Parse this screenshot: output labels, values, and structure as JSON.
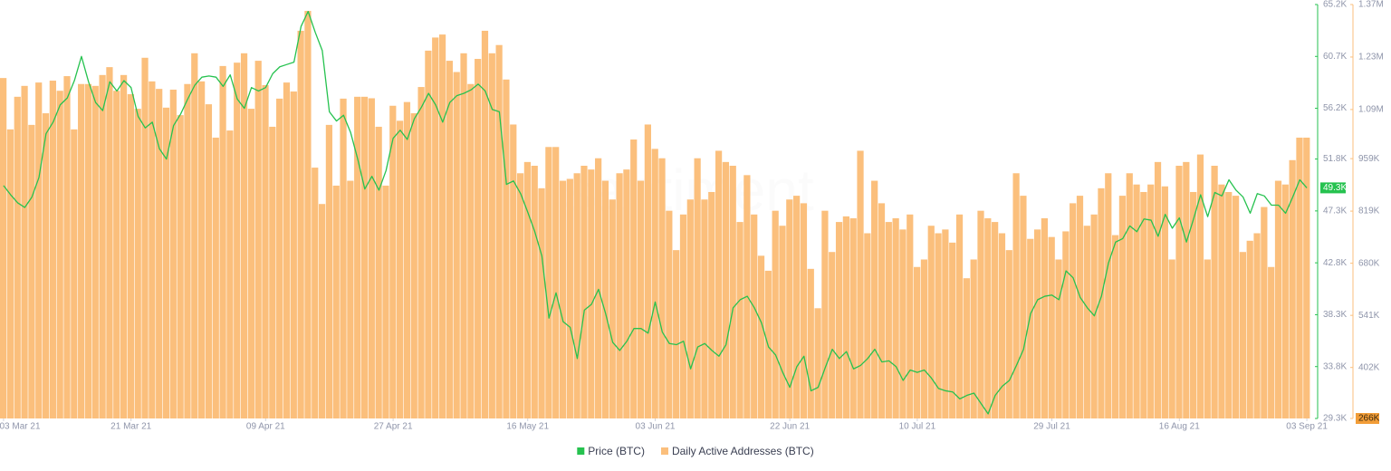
{
  "chart_data": {
    "type": "bar-line",
    "watermark": "santiment",
    "x": [
      "2021-03-03",
      "2021-03-04",
      "2021-03-05",
      "2021-03-06",
      "2021-03-07",
      "2021-03-08",
      "2021-03-09",
      "2021-03-10",
      "2021-03-11",
      "2021-03-12",
      "2021-03-13",
      "2021-03-14",
      "2021-03-15",
      "2021-03-16",
      "2021-03-17",
      "2021-03-18",
      "2021-03-19",
      "2021-03-20",
      "2021-03-21",
      "2021-03-22",
      "2021-03-23",
      "2021-03-24",
      "2021-03-25",
      "2021-03-26",
      "2021-03-27",
      "2021-03-28",
      "2021-03-29",
      "2021-03-30",
      "2021-03-31",
      "2021-04-01",
      "2021-04-02",
      "2021-04-03",
      "2021-04-04",
      "2021-04-05",
      "2021-04-06",
      "2021-04-07",
      "2021-04-08",
      "2021-04-09",
      "2021-04-10",
      "2021-04-11",
      "2021-04-12",
      "2021-04-13",
      "2021-04-14",
      "2021-04-15",
      "2021-04-16",
      "2021-04-17",
      "2021-04-18",
      "2021-04-19",
      "2021-04-20",
      "2021-04-21",
      "2021-04-22",
      "2021-04-23",
      "2021-04-24",
      "2021-04-25",
      "2021-04-26",
      "2021-04-27",
      "2021-04-28",
      "2021-04-29",
      "2021-04-30",
      "2021-05-01",
      "2021-05-02",
      "2021-05-03",
      "2021-05-04",
      "2021-05-05",
      "2021-05-06",
      "2021-05-07",
      "2021-05-08",
      "2021-05-09",
      "2021-05-10",
      "2021-05-11",
      "2021-05-12",
      "2021-05-13",
      "2021-05-14",
      "2021-05-15",
      "2021-05-16",
      "2021-05-17",
      "2021-05-18",
      "2021-05-19",
      "2021-05-20",
      "2021-05-21",
      "2021-05-22",
      "2021-05-23",
      "2021-05-24",
      "2021-05-25",
      "2021-05-26",
      "2021-05-27",
      "2021-05-28",
      "2021-05-29",
      "2021-05-30",
      "2021-05-31",
      "2021-06-01",
      "2021-06-02",
      "2021-06-03",
      "2021-06-04",
      "2021-06-05",
      "2021-06-06",
      "2021-06-07",
      "2021-06-08",
      "2021-06-09",
      "2021-06-10",
      "2021-06-11",
      "2021-06-12",
      "2021-06-13",
      "2021-06-14",
      "2021-06-15",
      "2021-06-16",
      "2021-06-17",
      "2021-06-18",
      "2021-06-19",
      "2021-06-20",
      "2021-06-21",
      "2021-06-22",
      "2021-06-23",
      "2021-06-24",
      "2021-06-25",
      "2021-06-26",
      "2021-06-27",
      "2021-06-28",
      "2021-06-29",
      "2021-06-30",
      "2021-07-01",
      "2021-07-02",
      "2021-07-03",
      "2021-07-04",
      "2021-07-05",
      "2021-07-06",
      "2021-07-07",
      "2021-07-08",
      "2021-07-09",
      "2021-07-10",
      "2021-07-11",
      "2021-07-12",
      "2021-07-13",
      "2021-07-14",
      "2021-07-15",
      "2021-07-16",
      "2021-07-17",
      "2021-07-18",
      "2021-07-19",
      "2021-07-20",
      "2021-07-21",
      "2021-07-22",
      "2021-07-23",
      "2021-07-24",
      "2021-07-25",
      "2021-07-26",
      "2021-07-27",
      "2021-07-28",
      "2021-07-29",
      "2021-07-30",
      "2021-07-31",
      "2021-08-01",
      "2021-08-02",
      "2021-08-03",
      "2021-08-04",
      "2021-08-05",
      "2021-08-06",
      "2021-08-07",
      "2021-08-08",
      "2021-08-09",
      "2021-08-10",
      "2021-08-11",
      "2021-08-12",
      "2021-08-13",
      "2021-08-14",
      "2021-08-15",
      "2021-08-16",
      "2021-08-17",
      "2021-08-18",
      "2021-08-19",
      "2021-08-20",
      "2021-08-21",
      "2021-08-22",
      "2021-08-23",
      "2021-08-24",
      "2021-08-25",
      "2021-08-26",
      "2021-08-27",
      "2021-08-28",
      "2021-08-29",
      "2021-08-30",
      "2021-08-31",
      "2021-09-01",
      "2021-09-02",
      "2021-09-03"
    ],
    "xticks": [
      {
        "value": "2021-03-03",
        "label": "03 Mar 21"
      },
      {
        "value": "2021-03-21",
        "label": "21 Mar 21"
      },
      {
        "value": "2021-04-09",
        "label": "09 Apr 21"
      },
      {
        "value": "2021-04-27",
        "label": "27 Apr 21"
      },
      {
        "value": "2021-05-16",
        "label": "16 May 21"
      },
      {
        "value": "2021-06-03",
        "label": "03 Jun 21"
      },
      {
        "value": "2021-06-22",
        "label": "22 Jun 21"
      },
      {
        "value": "2021-07-10",
        "label": "10 Jul 21"
      },
      {
        "value": "2021-07-29",
        "label": "29 Jul 21"
      },
      {
        "value": "2021-08-16",
        "label": "16 Aug 21"
      },
      {
        "value": "2021-09-03",
        "label": "03 Sep 21"
      }
    ],
    "ylim": [
      29.3,
      65.2
    ],
    "yticks": [
      {
        "value": 65.2,
        "label": "65.2K"
      },
      {
        "value": 60.7,
        "label": "60.7K"
      },
      {
        "value": 56.2,
        "label": "56.2K"
      },
      {
        "value": 51.8,
        "label": "51.8K"
      },
      {
        "value": 47.3,
        "label": "47.3K"
      },
      {
        "value": 42.8,
        "label": "42.8K"
      },
      {
        "value": 38.3,
        "label": "38.3K"
      },
      {
        "value": 33.8,
        "label": "33.8K"
      },
      {
        "value": 29.3,
        "label": "29.3K"
      }
    ],
    "y2lim": [
      266,
      1370
    ],
    "y2ticks": [
      {
        "value": 1370,
        "label": "1.37M"
      },
      {
        "value": 1230,
        "label": "1.23M"
      },
      {
        "value": 1090,
        "label": "1.09M"
      },
      {
        "value": 959,
        "label": "959K"
      },
      {
        "value": 819,
        "label": "819K"
      },
      {
        "value": 680,
        "label": "680K"
      },
      {
        "value": 541,
        "label": "541K"
      },
      {
        "value": 402,
        "label": "402K"
      },
      {
        "value": 266,
        "label": "266K"
      }
    ],
    "last_value_label": "49.3K",
    "series": [
      {
        "name": "Price (BTC)",
        "type": "line",
        "axis": "y",
        "color": "#26c24f",
        "values": [
          49.5,
          48.7,
          48.0,
          47.6,
          48.5,
          50.2,
          54.0,
          55.0,
          56.5,
          57.1,
          58.6,
          60.7,
          58.5,
          56.7,
          56.0,
          58.5,
          57.7,
          58.6,
          58.0,
          55.5,
          54.5,
          55.0,
          52.7,
          51.8,
          54.7,
          55.7,
          57.0,
          58.2,
          58.9,
          59.0,
          58.9,
          58.1,
          59.1,
          57.0,
          56.2,
          58.0,
          57.7,
          58.0,
          59.2,
          59.8,
          60.0,
          60.2,
          63.3,
          64.6,
          62.8,
          61.2,
          55.9,
          55.1,
          55.6,
          54.1,
          51.8,
          49.2,
          50.3,
          49.1,
          50.8,
          53.6,
          54.3,
          53.5,
          55.3,
          56.3,
          57.5,
          56.5,
          55.0,
          56.7,
          57.3,
          57.5,
          57.8,
          58.3,
          57.7,
          56.1,
          55.9,
          49.6,
          49.9,
          48.8,
          47.2,
          45.5,
          43.4,
          38.0,
          40.2,
          37.7,
          37.2,
          34.5,
          38.7,
          39.2,
          40.5,
          38.4,
          35.9,
          35.2,
          36.0,
          37.1,
          37.1,
          36.7,
          39.4,
          36.8,
          35.8,
          35.7,
          36.0,
          33.6,
          35.5,
          35.8,
          35.2,
          34.7,
          35.7,
          38.9,
          39.6,
          39.9,
          38.9,
          37.6,
          35.5,
          34.8,
          33.3,
          32.0,
          33.8,
          34.7,
          31.7,
          32.0,
          33.7,
          35.3,
          34.5,
          35.1,
          33.6,
          33.9,
          34.5,
          35.3,
          34.2,
          34.3,
          33.8,
          32.6,
          33.5,
          33.3,
          33.5,
          32.8,
          31.9,
          31.7,
          31.6,
          31.0,
          31.3,
          31.5,
          30.6,
          29.7,
          31.3,
          32.1,
          32.6,
          33.9,
          35.3,
          38.4,
          39.6,
          39.9,
          40.0,
          39.6,
          42.1,
          41.5,
          39.8,
          38.9,
          38.2,
          39.9,
          42.8,
          44.6,
          44.9,
          46.0,
          45.5,
          46.6,
          46.5,
          45.1,
          47.0,
          45.8,
          46.7,
          44.6,
          46.6,
          48.7,
          46.8,
          48.9,
          48.6,
          50.0,
          49.1,
          48.5,
          47.1,
          48.8,
          48.6,
          47.8,
          47.8,
          47.1,
          48.5,
          50.0,
          49.3
        ]
      },
      {
        "name": "Daily Active Addresses (BTC)",
        "type": "bar",
        "axis": "y2",
        "color": "#fbbf7c",
        "values": [
          1174,
          1037,
          1124,
          1153,
          1049,
          1162,
          1080,
          1167,
          1140,
          1179,
          1037,
          1158,
          1158,
          1153,
          1182,
          1203,
          1140,
          1182,
          1131,
          1092,
          1228,
          1165,
          1145,
          1095,
          1143,
          1075,
          1158,
          1240,
          1165,
          1104,
          1015,
          1206,
          1034,
          1215,
          1240,
          1092,
          1220,
          1155,
          1044,
          1119,
          1162,
          1138,
          1300,
          1353,
          935,
          838,
          1049,
          887,
          1119,
          900,
          1124,
          1124,
          1120,
          1044,
          887,
          1100,
          1060,
          1110,
          1080,
          1150,
          1247,
          1282,
          1290,
          1220,
          1190,
          1240,
          1158,
          1225,
          1300,
          1240,
          1262,
          1170,
          1050,
          920,
          950,
          940,
          880,
          990,
          990,
          900,
          905,
          920,
          940,
          930,
          960,
          900,
          850,
          920,
          930,
          1010,
          900,
          1050,
          985,
          960,
          820,
          715,
          810,
          850,
          960,
          850,
          870,
          980,
          950,
          940,
          790,
          915,
          810,
          700,
          660,
          820,
          780,
          850,
          860,
          840,
          665,
          560,
          820,
          710,
          790,
          805,
          800,
          980,
          760,
          900,
          840,
          790,
          800,
          770,
          810,
          670,
          690,
          780,
          760,
          770,
          735,
          810,
          640,
          690,
          820,
          800,
          790,
          760,
          715,
          920,
          860,
          745,
          770,
          800,
          750,
          690,
          765,
          840,
          860,
          780,
          810,
          880,
          920,
          755,
          860,
          920,
          890,
          870,
          890,
          950,
          885,
          690,
          940,
          950,
          870,
          970,
          690,
          940,
          890,
          870,
          860,
          710,
          740,
          760,
          830,
          670,
          900,
          890,
          955,
          1015,
          1015
        ]
      }
    ]
  }
}
